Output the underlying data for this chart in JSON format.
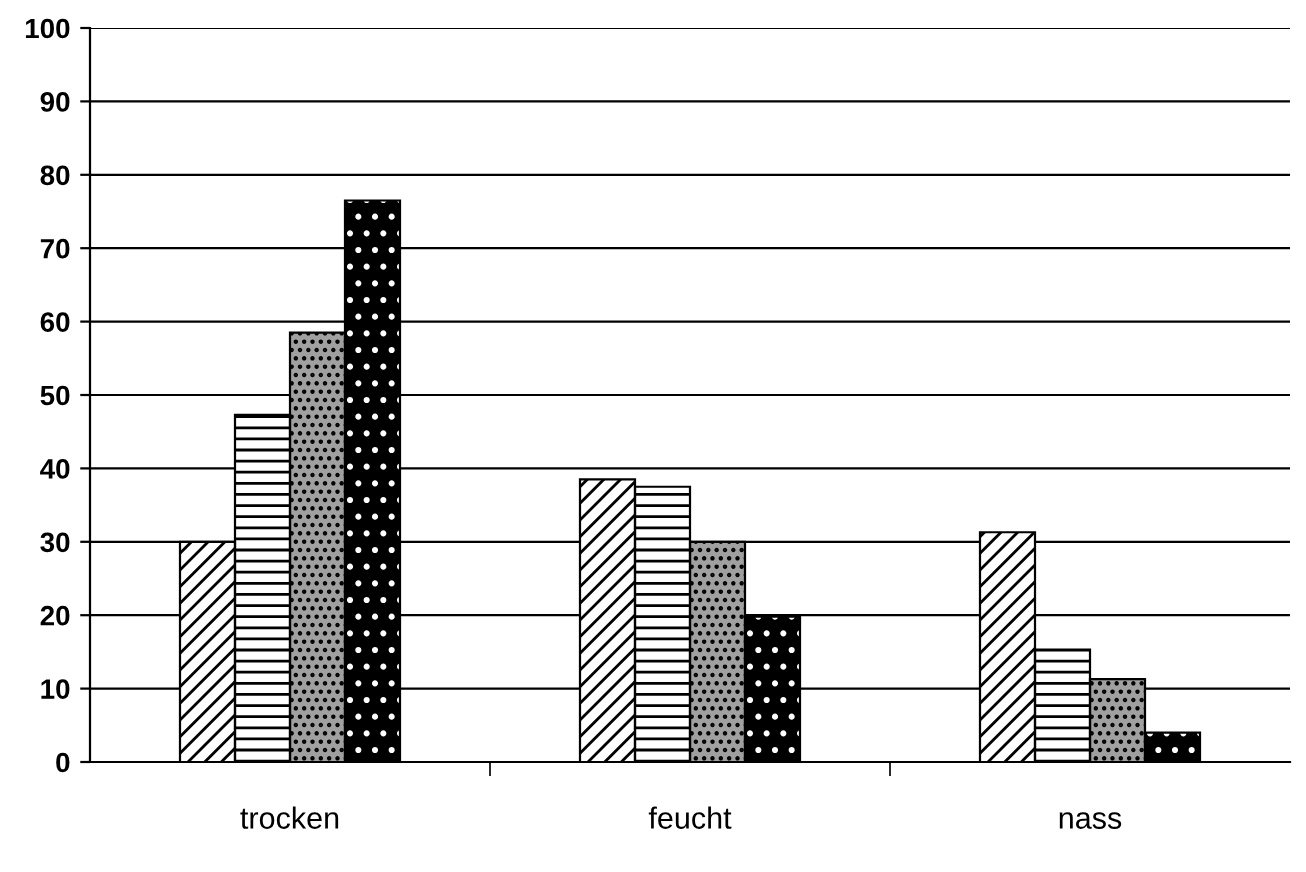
{
  "chart_data": {
    "type": "bar",
    "categories": [
      "trocken",
      "feucht",
      "nass"
    ],
    "series": [
      {
        "color": "#ffffff",
        "values": [
          30,
          38.5,
          31.3
        ]
      },
      {
        "color": "#ffffff",
        "values": [
          47.3,
          37.5,
          15.3
        ]
      },
      {
        "color": "#a0a0a0",
        "values": [
          58.5,
          30,
          11.3
        ]
      },
      {
        "color": "#000000",
        "values": [
          76.5,
          19.8,
          4
        ]
      }
    ],
    "ylim": [
      0,
      100
    ],
    "yticks": [
      0,
      10,
      20,
      30,
      40,
      50,
      60,
      70,
      80,
      90,
      100
    ],
    "grid": "y",
    "legend": false
  }
}
